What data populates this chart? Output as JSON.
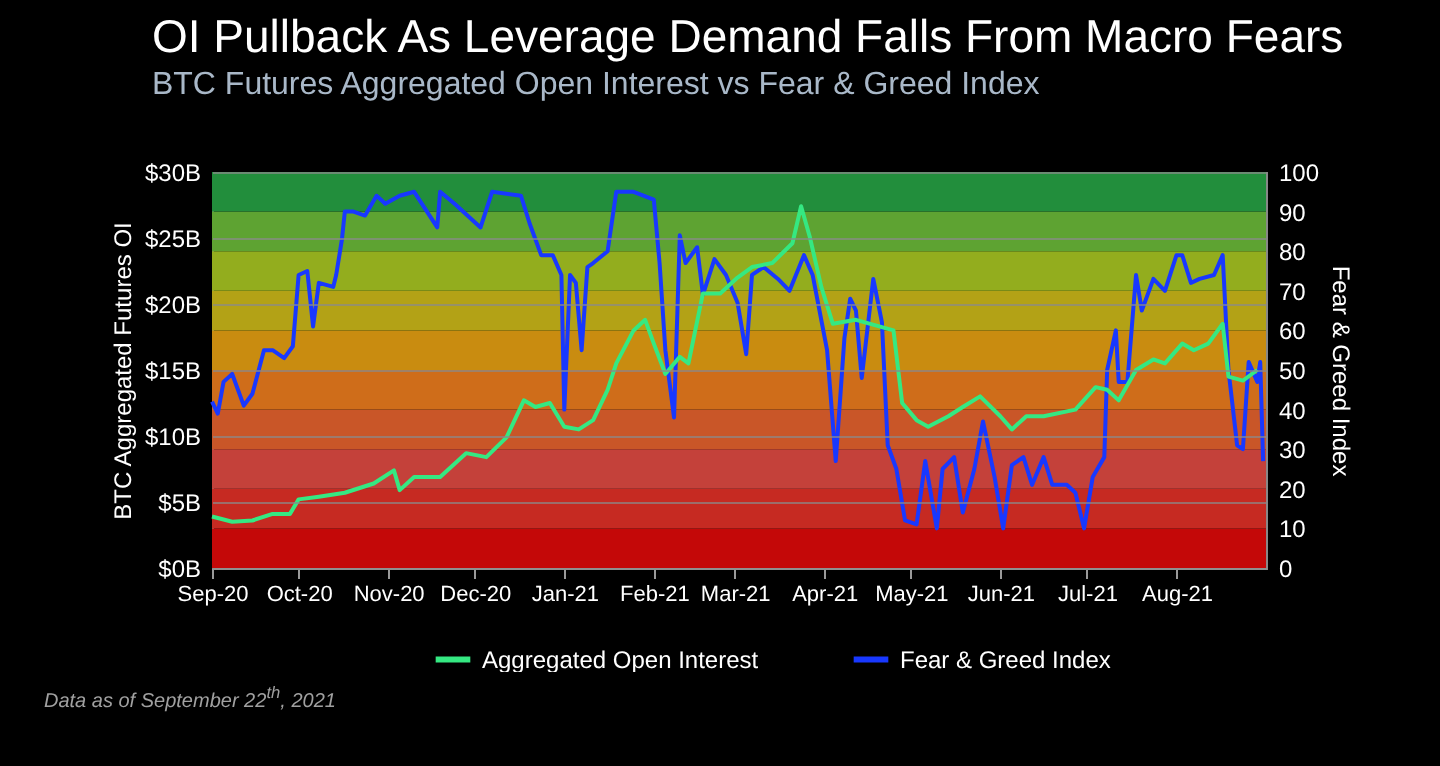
{
  "chart_data": {
    "type": "line",
    "title": "OI Pullback As Leverage Demand Falls From Macro Fears",
    "subtitle": "BTC Futures Aggregated Open Interest vs Fear & Greed Index",
    "ylabel": "BTC Aggregated Futures OI",
    "y2label": "Fear & Greed Index",
    "annotations": [
      "Data as of September 22$^{th}$, 2021"
    ],
    "xlim": [
      "2020-09-01",
      "2021-09-01"
    ],
    "xticks": [
      {
        "value": "2020-09-01",
        "label": "Sep-20"
      },
      {
        "value": "2020-10-01",
        "label": "Oct-20"
      },
      {
        "value": "2020-11-01",
        "label": "Nov-20"
      },
      {
        "value": "2020-12-01",
        "label": "Dec-20"
      },
      {
        "value": "2021-01-01",
        "label": "Jan-21"
      },
      {
        "value": "2021-02-01",
        "label": "Feb-21"
      },
      {
        "value": "2021-03-01",
        "label": "Mar-21"
      },
      {
        "value": "2021-04-01",
        "label": "Apr-21"
      },
      {
        "value": "2021-05-01",
        "label": "May-21"
      },
      {
        "value": "2021-06-01",
        "label": "Jun-21"
      },
      {
        "value": "2021-07-01",
        "label": "Jul-21"
      },
      {
        "value": "2021-08-01",
        "label": "Aug-21"
      }
    ],
    "ylim": [
      0,
      30
    ],
    "yticks": [
      {
        "value": 0,
        "label": "$0B"
      },
      {
        "value": 5,
        "label": "$5B"
      },
      {
        "value": 10,
        "label": "$10B"
      },
      {
        "value": 15,
        "label": "$15B"
      },
      {
        "value": 20,
        "label": "$20B"
      },
      {
        "value": 25,
        "label": "$25B"
      },
      {
        "value": 30,
        "label": "$30B"
      }
    ],
    "y2lim": [
      0,
      100
    ],
    "y2ticks": [
      0,
      10,
      20,
      30,
      40,
      50,
      60,
      70,
      80,
      90,
      100
    ],
    "grid": "y",
    "legend": "bottom",
    "marker": "none",
    "bands": [
      {
        "axis": "y2",
        "from": 0,
        "to": 10,
        "color": "#c40808"
      },
      {
        "axis": "y2",
        "from": 10,
        "to": 20,
        "color": "#c62a22"
      },
      {
        "axis": "y2",
        "from": 20,
        "to": 30,
        "color": "#c4413a"
      },
      {
        "axis": "y2",
        "from": 30,
        "to": 40,
        "color": "#c95628"
      },
      {
        "axis": "y2",
        "from": 40,
        "to": 50,
        "color": "#cf6d1a"
      },
      {
        "axis": "y2",
        "from": 50,
        "to": 60,
        "color": "#c98c10"
      },
      {
        "axis": "y2",
        "from": 60,
        "to": 70,
        "color": "#b3a216"
      },
      {
        "axis": "y2",
        "from": 70,
        "to": 80,
        "color": "#93ad1e"
      },
      {
        "axis": "y2",
        "from": 80,
        "to": 90,
        "color": "#5ea332"
      },
      {
        "axis": "y2",
        "from": 90,
        "to": 100,
        "color": "#228e3c"
      }
    ],
    "series": [
      {
        "name": "Aggregated Open Interest",
        "color": "#35e882",
        "x": [
          "2020-09-01",
          "2020-09-08",
          "2020-09-15",
          "2020-09-22",
          "2020-09-28",
          "2020-10-01",
          "2020-10-08",
          "2020-10-17",
          "2020-10-27",
          "2020-11-03",
          "2020-11-05",
          "2020-11-10",
          "2020-11-19",
          "2020-11-28",
          "2020-12-05",
          "2020-12-12",
          "2020-12-18",
          "2020-12-22",
          "2020-12-27",
          "2021-01-01",
          "2021-01-06",
          "2021-01-11",
          "2021-01-16",
          "2021-01-19",
          "2021-01-25",
          "2021-01-29",
          "2021-02-01",
          "2021-02-05",
          "2021-02-10",
          "2021-02-13",
          "2021-02-18",
          "2021-02-24",
          "2021-03-02",
          "2021-03-07",
          "2021-03-14",
          "2021-03-21",
          "2021-03-24",
          "2021-03-27",
          "2021-03-31",
          "2021-04-04",
          "2021-04-12",
          "2021-04-25",
          "2021-04-28",
          "2021-05-03",
          "2021-05-07",
          "2021-05-14",
          "2021-05-19",
          "2021-05-25",
          "2021-06-01",
          "2021-06-05",
          "2021-06-10",
          "2021-06-16",
          "2021-06-27",
          "2021-07-04",
          "2021-07-08",
          "2021-07-12",
          "2021-07-18",
          "2021-07-24",
          "2021-07-28",
          "2021-08-03",
          "2021-08-07",
          "2021-08-12",
          "2021-08-17",
          "2021-08-19",
          "2021-08-24",
          "2021-08-29"
        ],
        "values": [
          3.9,
          3.5,
          3.6,
          4.1,
          4.1,
          5.2,
          5.4,
          5.7,
          6.4,
          7.4,
          5.9,
          6.9,
          6.9,
          8.7,
          8.4,
          9.9,
          12.7,
          12.2,
          12.5,
          10.7,
          10.5,
          11.2,
          13.5,
          15.5,
          18,
          18.8,
          17,
          14.7,
          16,
          15.5,
          20.8,
          20.8,
          22,
          22.8,
          23.1,
          24.6,
          27.4,
          25.1,
          21.3,
          18.5,
          18.8,
          18,
          12.5,
          11.2,
          10.7,
          11.5,
          12.2,
          13,
          11.5,
          10.5,
          11.5,
          11.5,
          12,
          13.7,
          13.5,
          12.7,
          15,
          15.8,
          15.5,
          17,
          16.5,
          17,
          18.5,
          14.5,
          14.2,
          15
        ]
      },
      {
        "name": "Fear & Greed Index",
        "color": "#1838ff",
        "axis": "y2",
        "x": [
          "2020-09-01",
          "2020-09-03",
          "2020-09-05",
          "2020-09-08",
          "2020-09-12",
          "2020-09-15",
          "2020-09-19",
          "2020-09-22",
          "2020-09-26",
          "2020-09-29",
          "2020-10-01",
          "2020-10-04",
          "2020-10-06",
          "2020-10-08",
          "2020-10-13",
          "2020-10-14",
          "2020-10-16",
          "2020-10-17",
          "2020-10-20",
          "2020-10-24",
          "2020-10-28",
          "2020-10-31",
          "2020-11-05",
          "2020-11-10",
          "2020-11-18",
          "2020-11-19",
          "2020-11-24",
          "2020-12-03",
          "2020-12-07",
          "2020-12-17",
          "2020-12-20",
          "2020-12-24",
          "2020-12-28",
          "2020-12-31",
          "2021-01-01",
          "2021-01-03",
          "2021-01-05",
          "2021-01-07",
          "2021-01-09",
          "2021-01-11",
          "2021-01-16",
          "2021-01-19",
          "2021-01-25",
          "2021-02-01",
          "2021-02-03",
          "2021-02-05",
          "2021-02-08",
          "2021-02-10",
          "2021-02-12",
          "2021-02-16",
          "2021-02-18",
          "2021-02-22",
          "2021-02-26",
          "2021-03-02",
          "2021-03-05",
          "2021-03-07",
          "2021-03-11",
          "2021-03-16",
          "2021-03-20",
          "2021-03-25",
          "2021-03-28",
          "2021-04-02",
          "2021-04-05",
          "2021-04-08",
          "2021-04-10",
          "2021-04-12",
          "2021-04-14",
          "2021-04-18",
          "2021-04-21",
          "2021-04-23",
          "2021-04-26",
          "2021-04-29",
          "2021-05-03",
          "2021-05-06",
          "2021-05-10",
          "2021-05-12",
          "2021-05-16",
          "2021-05-19",
          "2021-05-23",
          "2021-05-26",
          "2021-05-30",
          "2021-06-02",
          "2021-06-05",
          "2021-06-09",
          "2021-06-12",
          "2021-06-16",
          "2021-06-19",
          "2021-06-24",
          "2021-06-27",
          "2021-06-30",
          "2021-07-03",
          "2021-07-07",
          "2021-07-08",
          "2021-07-11",
          "2021-07-12",
          "2021-07-15",
          "2021-07-18",
          "2021-07-20",
          "2021-07-24",
          "2021-07-28",
          "2021-08-01",
          "2021-08-03",
          "2021-08-06",
          "2021-08-09",
          "2021-08-14",
          "2021-08-17",
          "2021-08-19",
          "2021-08-22",
          "2021-08-24",
          "2021-08-26",
          "2021-08-29",
          "2021-08-30",
          "2021-08-31"
        ],
        "values": [
          42,
          39,
          47,
          49,
          41,
          44,
          55,
          55,
          53,
          56,
          74,
          75,
          61,
          72,
          71,
          74,
          83,
          90,
          90,
          89,
          94,
          92,
          94,
          95,
          86,
          95,
          92,
          86,
          95,
          94,
          87,
          79,
          79,
          74,
          40,
          74,
          72,
          55,
          76,
          77,
          80,
          95,
          95,
          93,
          77,
          55,
          38,
          84,
          77,
          81,
          69,
          78,
          74,
          67,
          54,
          74,
          76,
          73,
          70,
          79,
          74,
          55,
          27,
          58,
          68,
          65,
          48,
          73,
          62,
          31,
          25,
          12,
          11,
          27,
          10,
          25,
          28,
          14,
          25,
          37,
          23,
          10,
          26,
          28,
          21,
          28,
          21,
          21,
          19,
          10,
          23,
          28,
          50,
          60,
          47,
          47,
          74,
          65,
          73,
          70,
          79,
          79,
          72,
          73,
          74,
          79,
          50,
          31,
          30,
          52,
          47,
          52,
          27
        ]
      }
    ]
  }
}
